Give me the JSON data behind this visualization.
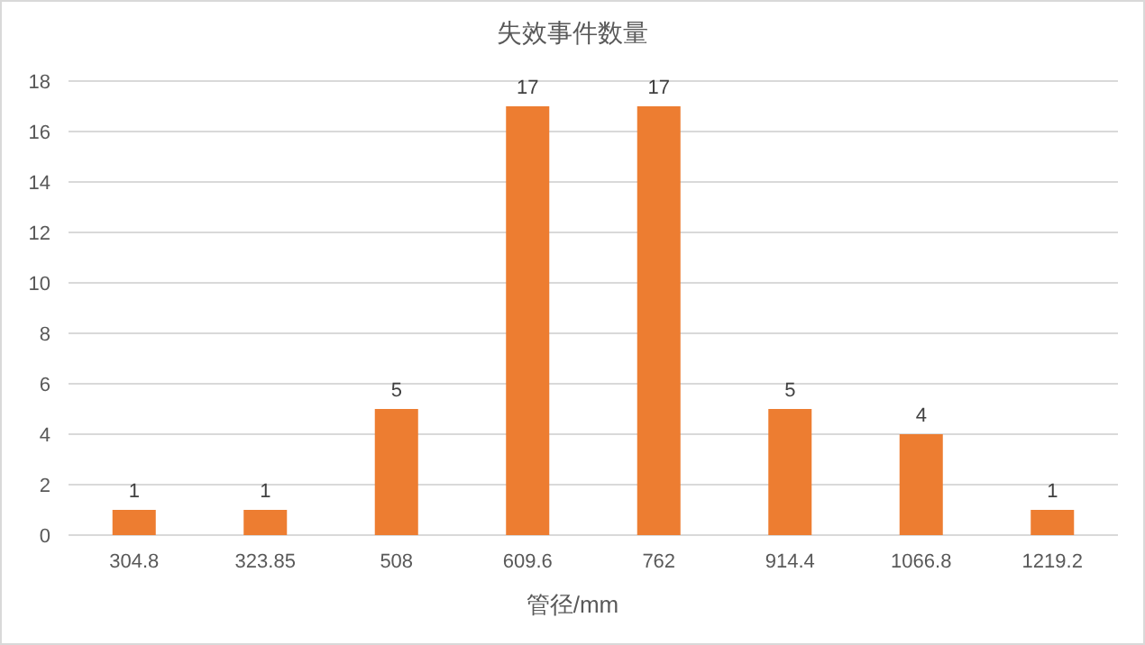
{
  "chart_data": {
    "type": "bar",
    "title": "失效事件数量",
    "xlabel": "管径/mm",
    "categories": [
      "304.8",
      "323.85",
      "508",
      "609.6",
      "762",
      "914.4",
      "1066.8",
      "1219.2"
    ],
    "values": [
      1,
      1,
      5,
      17,
      17,
      5,
      4,
      1
    ],
    "color": "#ed7d31",
    "ylim": [
      0,
      18
    ],
    "yticks": [
      0,
      2,
      4,
      6,
      8,
      10,
      12,
      14,
      16,
      18
    ],
    "grid": "y",
    "data_labels": true
  }
}
